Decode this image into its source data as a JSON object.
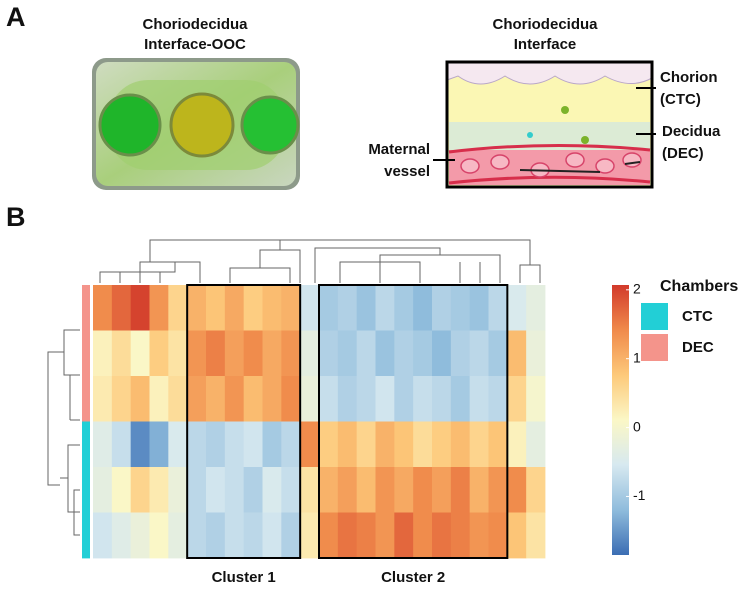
{
  "panel_a": {
    "label": "A",
    "photo_title": [
      "Choriodecidua",
      "Interface-OOC"
    ],
    "schematic_title": [
      "Choriodecidua",
      "Interface"
    ],
    "chorion": [
      "Chorion",
      "(CTC)"
    ],
    "decidua": [
      "Decidua",
      "(DEC)"
    ],
    "vessel": [
      "Maternal",
      "vessel"
    ]
  },
  "chart_data": {
    "type": "heatmap",
    "panel_label": "B",
    "values": [
      [
        1.4,
        1.7,
        2.0,
        1.3,
        0.6,
        1.0,
        0.8,
        1.1,
        0.7,
        0.9,
        1.0,
        -0.6,
        -1.0,
        -0.9,
        -1.1,
        -0.8,
        -1.0,
        -1.2,
        -0.9,
        -1.0,
        -1.1,
        -0.8,
        -0.5,
        -0.3
      ],
      [
        0.2,
        0.5,
        0.1,
        0.7,
        0.4,
        1.3,
        1.5,
        1.2,
        1.4,
        1.1,
        1.3,
        -0.3,
        -0.9,
        -1.0,
        -0.8,
        -1.1,
        -0.9,
        -1.0,
        -1.2,
        -0.9,
        -0.8,
        -1.0,
        0.9,
        -0.2
      ],
      [
        0.3,
        0.6,
        0.9,
        0.2,
        0.5,
        1.2,
        1.0,
        1.3,
        0.9,
        1.1,
        1.4,
        -0.2,
        -0.7,
        -0.9,
        -0.8,
        -0.6,
        -0.9,
        -0.7,
        -0.8,
        -1.0,
        -0.7,
        -0.8,
        0.6,
        0.0
      ],
      [
        -0.4,
        -0.7,
        -1.6,
        -1.3,
        -0.5,
        -0.8,
        -0.9,
        -0.7,
        -0.6,
        -1.0,
        -0.8,
        1.4,
        0.7,
        0.9,
        0.6,
        1.0,
        0.8,
        0.5,
        0.7,
        0.9,
        0.6,
        0.8,
        0.2,
        -0.3
      ],
      [
        -0.3,
        0.1,
        0.6,
        0.3,
        -0.2,
        -0.8,
        -0.6,
        -0.7,
        -0.9,
        -0.5,
        -0.7,
        0.4,
        1.0,
        1.2,
        0.9,
        1.3,
        1.1,
        1.4,
        1.2,
        1.5,
        1.0,
        1.3,
        1.4,
        0.6
      ],
      [
        -0.6,
        -0.4,
        -0.2,
        0.1,
        -0.3,
        -0.8,
        -0.9,
        -0.7,
        -0.8,
        -0.6,
        -0.9,
        0.3,
        1.4,
        1.6,
        1.5,
        1.3,
        1.7,
        1.4,
        1.6,
        1.5,
        1.3,
        1.4,
        0.8,
        0.4
      ]
    ],
    "row_group": [
      1,
      1,
      1,
      0,
      0,
      0
    ],
    "clim": [
      -1.85,
      2.07
    ],
    "cticks": [
      -1,
      0,
      1,
      2
    ],
    "colormap": [
      "#3b6db3",
      "#8fbcdc",
      "#d7e9f0",
      "#fbf7c6",
      "#fdc97a",
      "#f08a4b",
      "#d23a2b"
    ],
    "legend_title": "Chambers",
    "groups": [
      {
        "name": "CTC",
        "color": "#22cfd6"
      },
      {
        "name": "DEC",
        "color": "#f4948b"
      }
    ],
    "clusters": [
      {
        "label": "Cluster 1",
        "columns": [
          5,
          10
        ]
      },
      {
        "label": "Cluster 2",
        "columns": [
          12,
          21
        ]
      }
    ]
  }
}
